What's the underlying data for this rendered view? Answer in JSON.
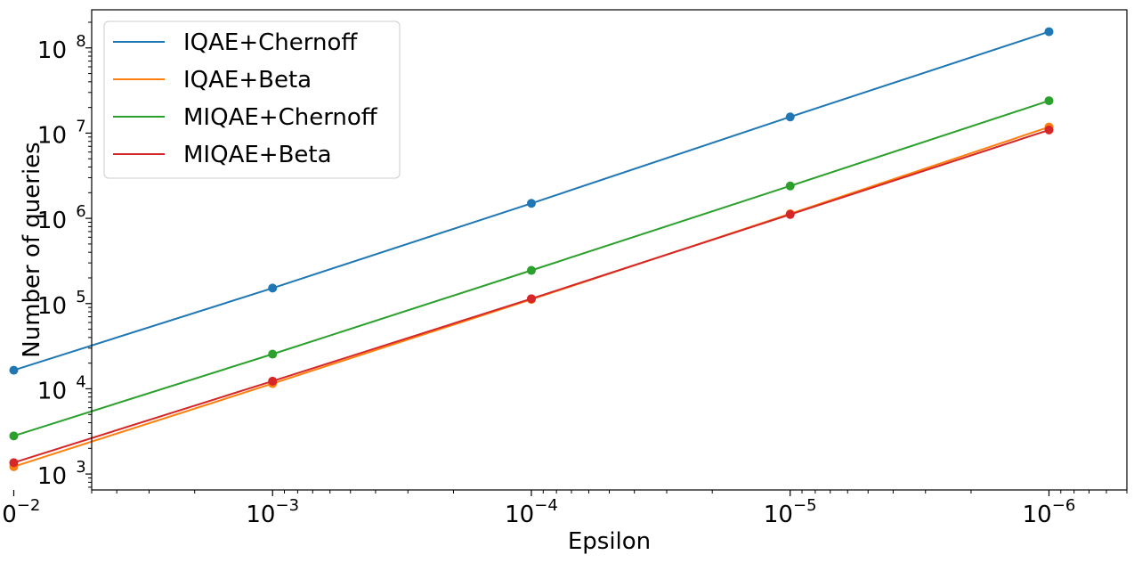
{
  "chart_data": {
    "type": "line",
    "title": "",
    "xlabel": "Epsilon",
    "ylabel": "Number of queries",
    "x_scale": "log",
    "y_scale": "log",
    "x_reversed": true,
    "xlim": [
      0.005,
      5e-07
    ],
    "ylim": [
      650,
      280000000
    ],
    "grid": false,
    "legend_position": "top-left",
    "x": [
      0.01,
      0.001,
      0.0001,
      1e-05,
      1e-06
    ],
    "x_ticks": [
      {
        "value": 0.01,
        "base": "10",
        "exp": "−2"
      },
      {
        "value": 0.001,
        "base": "10",
        "exp": "−3"
      },
      {
        "value": 0.0001,
        "base": "10",
        "exp": "−4"
      },
      {
        "value": 1e-05,
        "base": "10",
        "exp": "−5"
      },
      {
        "value": 1e-06,
        "base": "10",
        "exp": "−6"
      }
    ],
    "y_ticks": [
      {
        "value": 1000,
        "base": "10",
        "exp": "3"
      },
      {
        "value": 10000,
        "base": "10",
        "exp": "4"
      },
      {
        "value": 100000,
        "base": "10",
        "exp": "5"
      },
      {
        "value": 1000000,
        "base": "10",
        "exp": "6"
      },
      {
        "value": 10000000,
        "base": "10",
        "exp": "7"
      },
      {
        "value": 100000000,
        "base": "10",
        "exp": "8"
      }
    ],
    "series": [
      {
        "name": "IQAE+Chernoff",
        "color": "#1f77b4",
        "values": [
          16500,
          152000,
          1500000,
          15500000,
          155000000
        ]
      },
      {
        "name": "IQAE+Beta",
        "color": "#ff7f0e",
        "values": [
          1220,
          11500,
          112000,
          1130000,
          11800000
        ]
      },
      {
        "name": "MIQAE+Chernoff",
        "color": "#2ca02c",
        "values": [
          2800,
          25500,
          245000,
          2400000,
          24000000
        ]
      },
      {
        "name": "MIQAE+Beta",
        "color": "#d62728",
        "values": [
          1360,
          12300,
          114000,
          1110000,
          10900000
        ]
      }
    ]
  }
}
